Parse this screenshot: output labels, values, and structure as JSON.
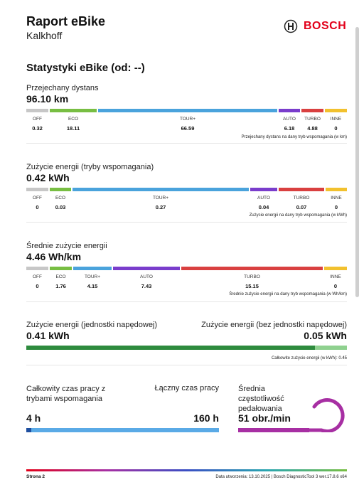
{
  "header": {
    "title": "Raport eBike",
    "subtitle": "Kalkhoff",
    "brand": "BOSCH"
  },
  "section_title": "Statystyki eBike (od: --)",
  "modes": {
    "off": "OFF",
    "eco": "ECO",
    "tour": "TOUR+",
    "auto": "AUTO",
    "turbo": "TURBO",
    "other": "INNE"
  },
  "colors": {
    "off": "#c7c7c7",
    "eco": "#78be43",
    "tour": "#4aa3dc",
    "auto": "#7a3dcc",
    "turbo": "#d94040",
    "other": "#f2c12e",
    "green": "#2e8b3e",
    "blue": "#5aaae6",
    "purple": "#a72fa3"
  },
  "distance": {
    "label": "Przejechany dystans",
    "value": "96.10 km",
    "off": "0.32",
    "eco": "18.11",
    "tour": "66.59",
    "auto": "6.18",
    "turbo": "4.88",
    "other": "0",
    "note": "Przejechany dystans na dany tryb wspomagania (w km)"
  },
  "energy": {
    "label": "Zużycie energii (tryby wspomagania)",
    "value": "0.42 kWh",
    "off": "0",
    "eco": "0.03",
    "tour": "0.27",
    "auto": "0.04",
    "turbo": "0.07",
    "other": "0",
    "note": "Zużycie energii na dany tryb wspomagania (w kWh)"
  },
  "avg": {
    "label": "Średnie zużycie energii",
    "value": "4.46 Wh/km",
    "off": "0",
    "eco": "1.76",
    "tour": "4.15",
    "auto": "7.43",
    "turbo": "15.15",
    "other": "0",
    "note": "Średnie zużycie energii na dany tryb wspomagania (w Wh/km)"
  },
  "drive": {
    "label_left": "Zużycie energii (jednostki napędowej)",
    "value_left": "0.41 kWh",
    "label_right": "Zużycie energii (bez jednostki napędowej)",
    "value_right": "0.05 kWh",
    "note": "Całkowite zużycie energii (w  kWh): 0.45",
    "share": 0.9
  },
  "time": {
    "label_assist": "Całkowity czas pracy z trybami wspomagania",
    "value_assist": "4 h",
    "label_total": "Łączny czas pracy",
    "value_total": "160 h",
    "share": 0.025
  },
  "cadence": {
    "label": "Średnia częstotliwość pedałowania",
    "value": "51 obr./min"
  },
  "footer": {
    "page": "Strona 2",
    "info": "Data utworzenia: 13.10.2025 | Bosch DiagnosticTool 3 wer.17.8.6 x64"
  }
}
